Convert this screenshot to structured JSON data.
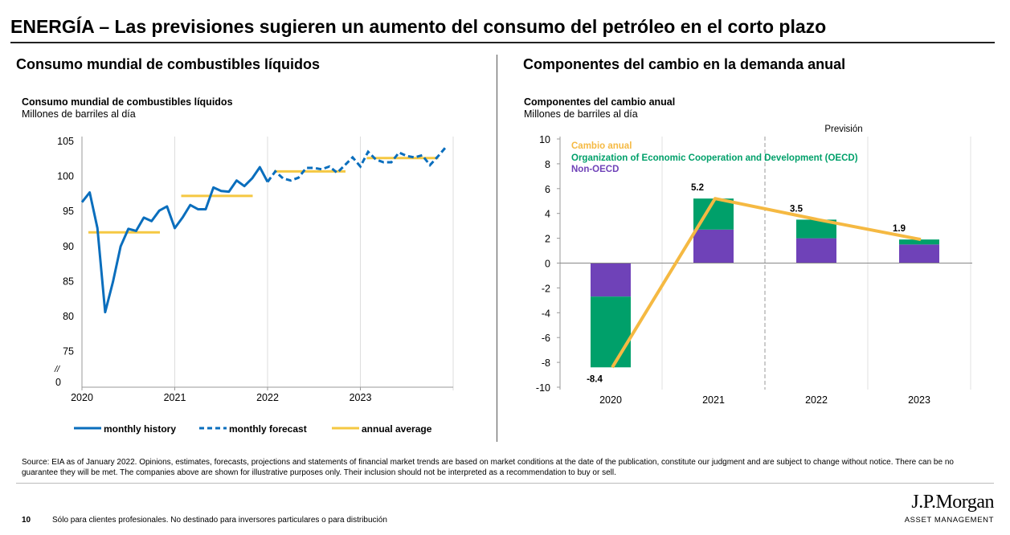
{
  "header": {
    "title": "ENERGÍA – Las previsiones sugieren un aumento del consumo del petróleo en el corto plazo"
  },
  "left_panel": {
    "heading": "Consumo mundial de combustibles líquidos",
    "chart_title": "Consumo mundial de combustibles líquidos",
    "chart_subtitle": "Millones de barriles al día"
  },
  "right_panel": {
    "heading": "Componentes del cambio en la demanda anual",
    "chart_title": "Componentes del cambio anual",
    "chart_subtitle": "Millones de barriles al día",
    "forecast_label": "Previsión"
  },
  "chart_data": [
    {
      "type": "line",
      "ylim": [
        0,
        105
      ],
      "axis_break": "//",
      "yticks": [
        "105",
        "100",
        "95",
        "90",
        "85",
        "80",
        "75",
        "0"
      ],
      "xticks": [
        "2020",
        "2021",
        "2022",
        "2023"
      ],
      "grid": "vertical",
      "legend_position": "bottom",
      "series": [
        {
          "name": "monthly history",
          "style": "solid",
          "color": "#0a6ebd",
          "start": "2020-01",
          "values": [
            96.2,
            97.6,
            92.5,
            80.5,
            84.8,
            89.9,
            92.4,
            92.1,
            94.0,
            93.5,
            95.0,
            95.6,
            92.5,
            94.0,
            95.8,
            95.2,
            95.2,
            98.3,
            97.8,
            97.7,
            99.3,
            98.5,
            99.6,
            101.2,
            99.1
          ]
        },
        {
          "name": "monthly forecast",
          "style": "dashed",
          "color": "#0a6ebd",
          "start": "2022-01",
          "values": [
            99.1,
            100.6,
            99.6,
            99.3,
            99.7,
            101.1,
            101.1,
            100.9,
            101.3,
            100.4,
            101.5,
            102.6,
            101.3,
            103.4,
            102.3,
            101.9,
            101.9,
            103.3,
            102.8,
            102.6,
            102.9,
            101.5,
            102.7,
            104.0
          ]
        },
        {
          "name": "annual average",
          "style": "solid",
          "color": "#f5c842",
          "years": [
            "2020",
            "2021",
            "2022",
            "2023"
          ],
          "values": [
            91.9,
            97.1,
            100.6,
            102.5
          ]
        }
      ]
    },
    {
      "type": "bar",
      "stacked": true,
      "categories": [
        "2020",
        "2021",
        "2022",
        "2023"
      ],
      "ylim": [
        -10,
        10
      ],
      "yticks": [
        "10",
        "8",
        "6",
        "4",
        "2",
        "0",
        "-2",
        "-4",
        "-6",
        "-8",
        "-10"
      ],
      "forecast_from": "2022",
      "legend_position": "top-left",
      "series": [
        {
          "name": "Non-OECD",
          "color": "#6f42b8",
          "values": [
            -2.7,
            2.7,
            2.0,
            1.5
          ]
        },
        {
          "name": "Organization of Economic Cooperation and Development (OECD)",
          "color": "#00a06a",
          "values": [
            -5.7,
            2.5,
            1.5,
            0.4
          ]
        },
        {
          "name": "Cambio anual",
          "type": "line",
          "color": "#f5b942",
          "values": [
            -8.4,
            5.2,
            3.5,
            1.9
          ],
          "labels": [
            "-8.4",
            "5.2",
            "3.5",
            "1.9"
          ]
        }
      ]
    }
  ],
  "footer": {
    "source": "Source: EIA as of January 2022. Opinions, estimates, forecasts, projections and statements of financial market trends are based on market conditions at the date of the publication, constitute our judgment and are subject to change without notice. There can be no guarantee they will be met. The companies above are shown for illustrative purposes only. Their inclusion should not be interpreted as a recommendation to buy or sell.",
    "page_number": "10",
    "disclaimer": "Sólo para clientes profesionales. No destinado para inversores particulares o para distribución",
    "logo_name": "J.P.Morgan",
    "logo_sub": "ASSET MANAGEMENT"
  }
}
